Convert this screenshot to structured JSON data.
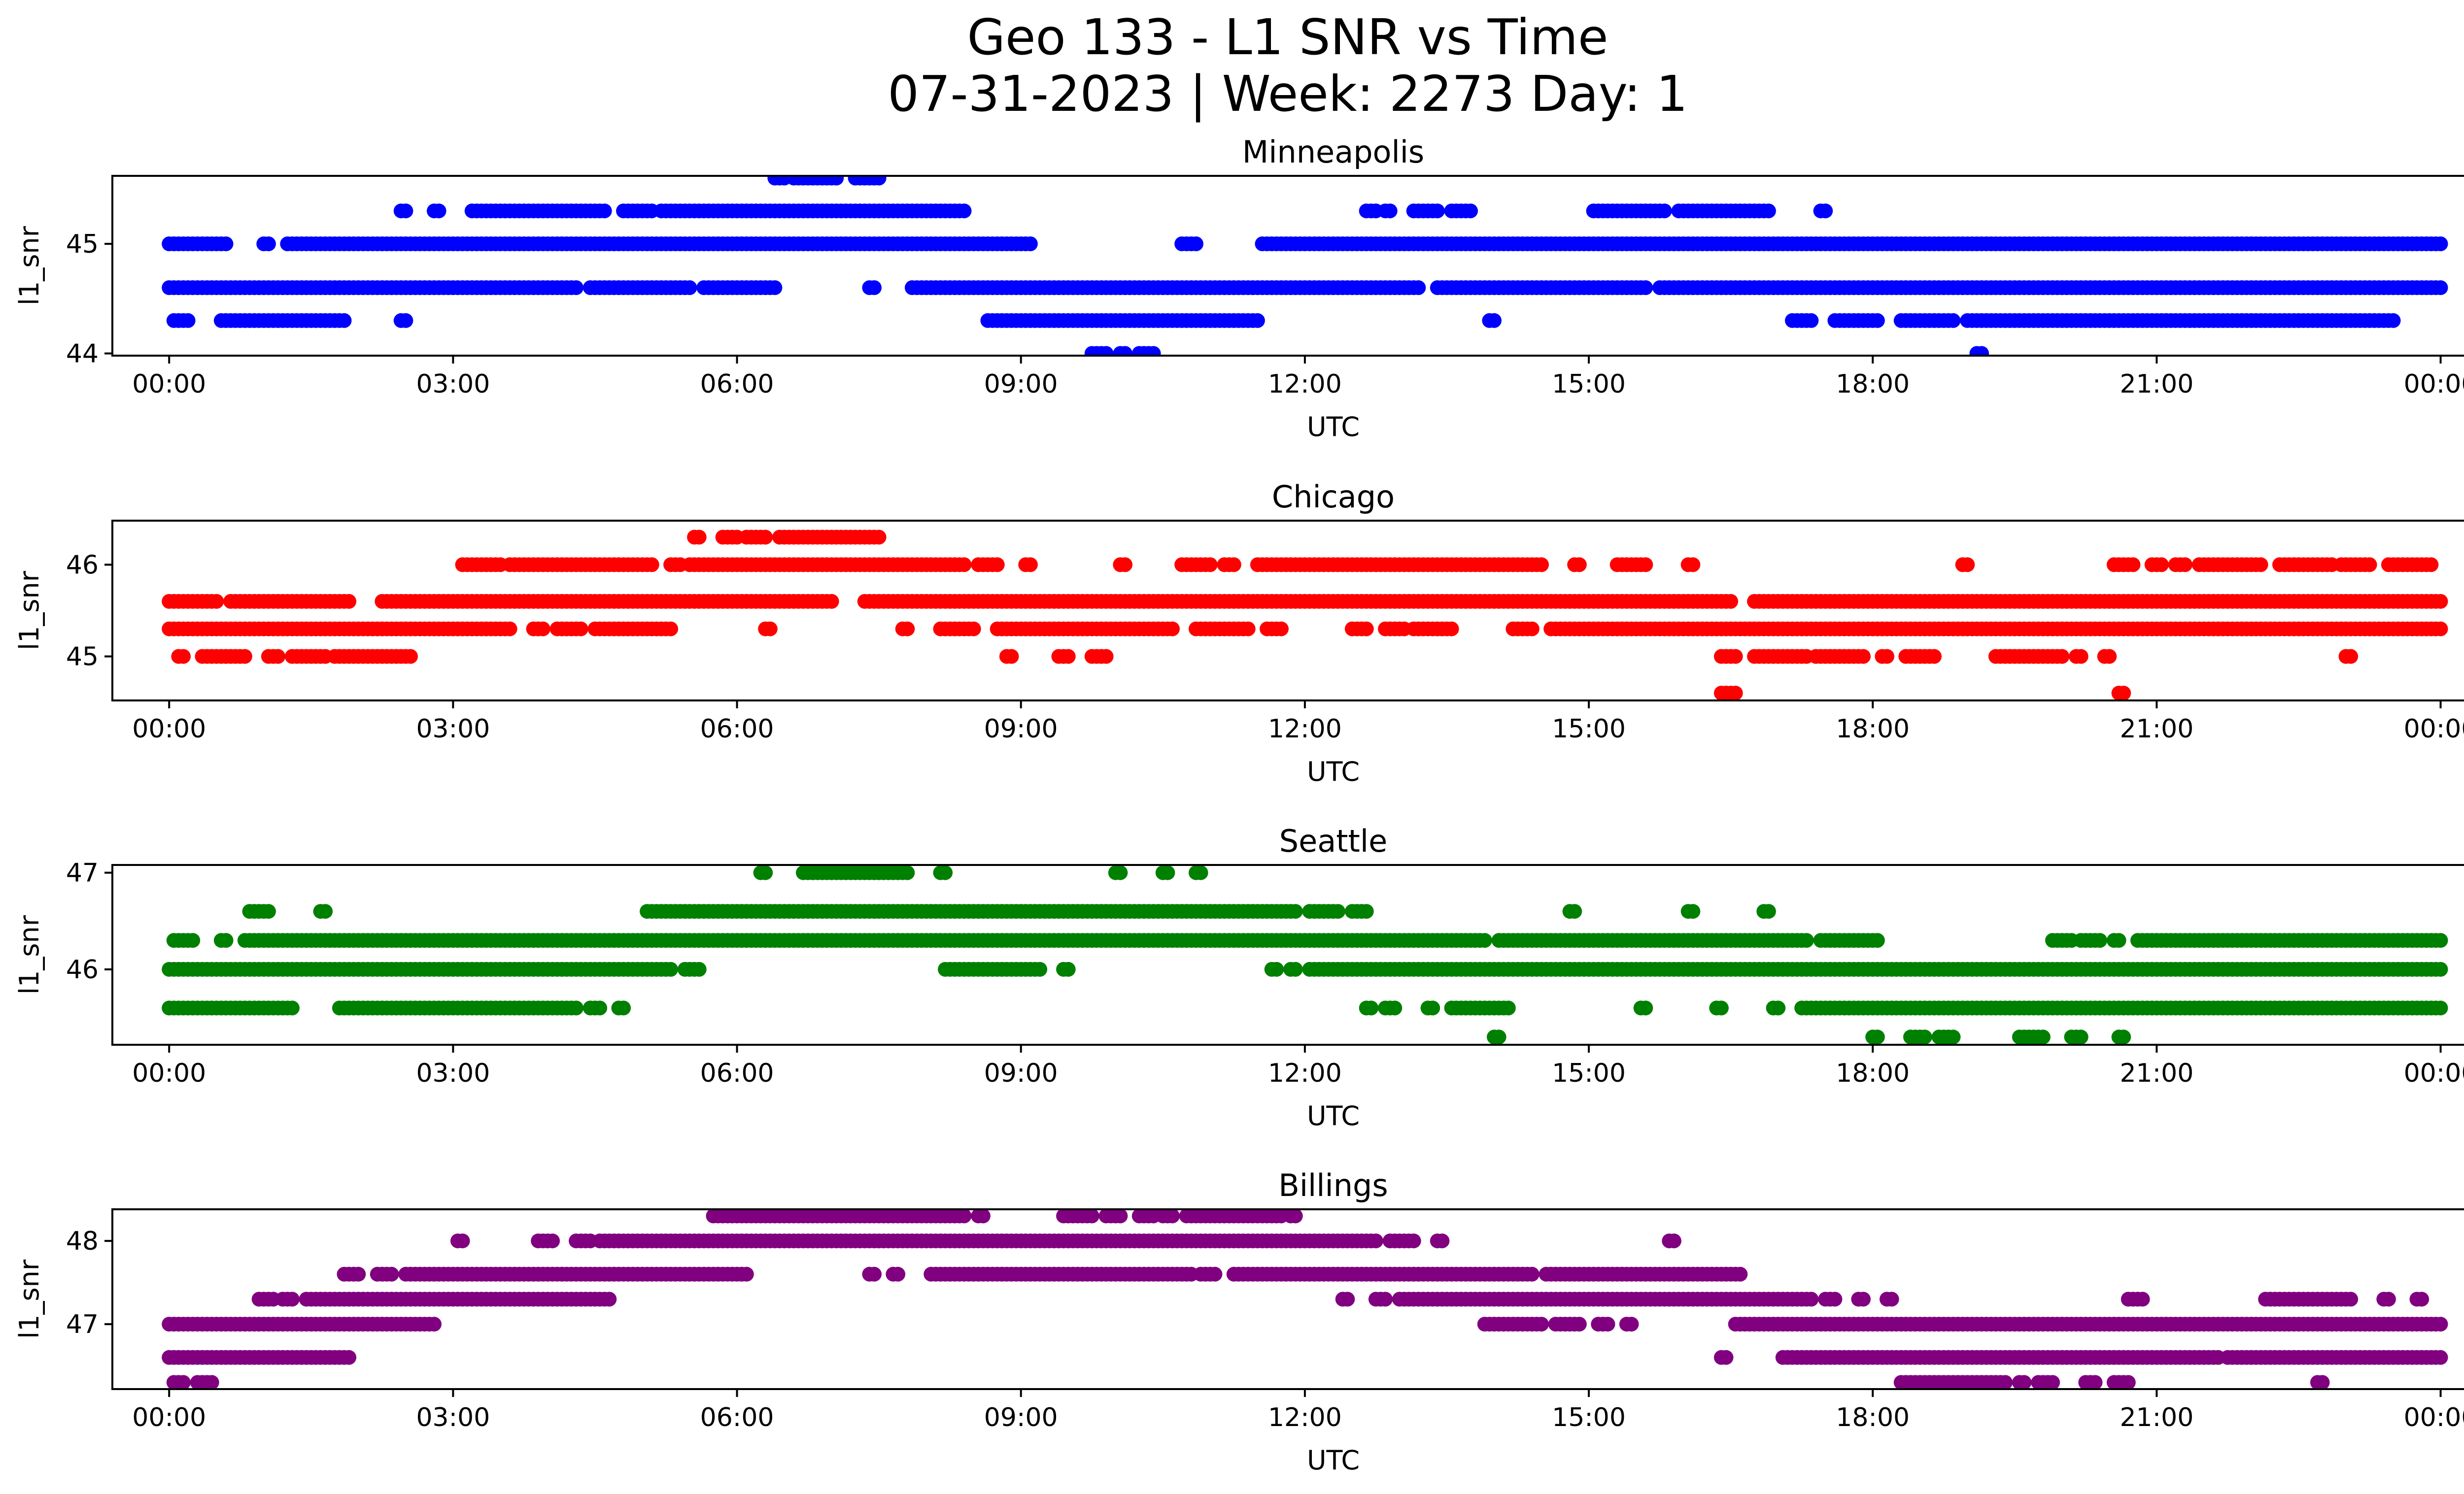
{
  "figure": {
    "title_line1": "Geo 133 - L1 SNR vs Time",
    "title_line2": "07-31-2023 | Week: 2273 Day: 1"
  },
  "chart_data": [
    {
      "type": "scatter",
      "title": "Minneapolis",
      "xlabel": "UTC",
      "ylabel": "l1_snr",
      "color": "#0000ff",
      "ylim": [
        43.98,
        45.62
      ],
      "yticks": [
        44,
        45
      ],
      "xlim_hours": [
        -0.6,
        25.2
      ],
      "xticks": [
        "00:00",
        "03:00",
        "06:00",
        "09:00",
        "12:00",
        "15:00",
        "18:00",
        "21:00",
        "00:00"
      ],
      "levels": [
        {
          "y": 45.6,
          "ranges": [
            [
              6.4,
              6.5
            ],
            [
              6.6,
              7.05
            ],
            [
              7.25,
              7.5
            ]
          ]
        },
        {
          "y": 45.3,
          "ranges": [
            [
              2.45,
              2.5
            ],
            [
              2.8,
              2.85
            ],
            [
              3.2,
              4.6
            ],
            [
              4.8,
              5.1
            ],
            [
              5.2,
              8.4
            ],
            [
              12.65,
              12.75
            ],
            [
              12.85,
              12.9
            ],
            [
              13.15,
              13.4
            ],
            [
              13.55,
              13.75
            ],
            [
              15.05,
              15.8
            ],
            [
              15.95,
              16.9
            ],
            [
              17.45,
              17.5
            ]
          ]
        },
        {
          "y": 45.0,
          "ranges": [
            [
              0.0,
              0.6
            ],
            [
              1.0,
              1.05
            ],
            [
              1.25,
              9.1
            ],
            [
              10.7,
              10.85
            ],
            [
              11.55,
              24.0
            ]
          ]
        },
        {
          "y": 44.6,
          "ranges": [
            [
              0.0,
              4.3
            ],
            [
              4.45,
              5.5
            ],
            [
              5.65,
              6.4
            ],
            [
              7.4,
              7.45
            ],
            [
              7.85,
              13.2
            ],
            [
              13.4,
              15.6
            ],
            [
              15.75,
              24.0
            ]
          ]
        },
        {
          "y": 44.3,
          "ranges": [
            [
              0.05,
              0.2
            ],
            [
              0.55,
              1.85
            ],
            [
              2.45,
              2.5
            ],
            [
              8.65,
              11.5
            ],
            [
              13.95,
              14.0
            ],
            [
              17.15,
              17.35
            ],
            [
              17.6,
              18.05
            ],
            [
              18.3,
              18.85
            ],
            [
              19.0,
              20.5
            ],
            [
              20.55,
              23.5
            ]
          ]
        },
        {
          "y": 44.0,
          "ranges": [
            [
              9.75,
              9.9
            ],
            [
              10.05,
              10.1
            ],
            [
              10.25,
              10.4
            ],
            [
              19.1,
              19.15
            ]
          ]
        }
      ]
    },
    {
      "type": "scatter",
      "title": "Chicago",
      "xlabel": "UTC",
      "ylabel": "l1_snr",
      "color": "#ff0000",
      "ylim": [
        44.52,
        46.48
      ],
      "yticks": [
        45,
        46
      ],
      "xlim_hours": [
        -0.6,
        25.2
      ],
      "xticks": [
        "00:00",
        "03:00",
        "06:00",
        "09:00",
        "12:00",
        "15:00",
        "18:00",
        "21:00",
        "00:00"
      ],
      "levels": [
        {
          "y": 46.3,
          "ranges": [
            [
              5.55,
              5.6
            ],
            [
              5.85,
              6.0
            ],
            [
              6.1,
              6.3
            ],
            [
              6.45,
              7.5
            ]
          ]
        },
        {
          "y": 46.0,
          "ranges": [
            [
              3.1,
              3.5
            ],
            [
              3.6,
              5.1
            ],
            [
              5.3,
              5.4
            ],
            [
              5.5,
              8.4
            ],
            [
              8.55,
              8.75
            ],
            [
              9.05,
              9.1
            ],
            [
              10.05,
              10.1
            ],
            [
              10.7,
              11.0
            ],
            [
              11.15,
              11.25
            ],
            [
              11.5,
              14.5
            ],
            [
              14.85,
              14.9
            ],
            [
              15.3,
              15.6
            ],
            [
              16.05,
              16.1
            ],
            [
              18.95,
              19.0
            ],
            [
              20.55,
              20.75
            ],
            [
              20.95,
              21.05
            ],
            [
              21.2,
              21.3
            ],
            [
              21.45,
              22.1
            ],
            [
              22.3,
              22.85
            ],
            [
              22.95,
              23.25
            ],
            [
              23.45,
              23.9
            ]
          ]
        },
        {
          "y": 45.6,
          "ranges": [
            [
              0.0,
              0.5
            ],
            [
              0.65,
              1.9
            ],
            [
              2.25,
              7.0
            ],
            [
              7.35,
              16.5
            ],
            [
              16.75,
              24.0
            ]
          ]
        },
        {
          "y": 45.3,
          "ranges": [
            [
              0.0,
              3.6
            ],
            [
              3.85,
              3.95
            ],
            [
              4.1,
              4.35
            ],
            [
              4.5,
              5.3
            ],
            [
              6.3,
              6.35
            ],
            [
              7.75,
              7.8
            ],
            [
              8.15,
              8.5
            ],
            [
              8.75,
              10.6
            ],
            [
              10.85,
              11.4
            ],
            [
              11.6,
              11.75
            ],
            [
              12.5,
              12.65
            ],
            [
              12.85,
              13.05
            ],
            [
              13.15,
              13.55
            ],
            [
              14.2,
              14.4
            ],
            [
              14.6,
              24.0
            ]
          ]
        },
        {
          "y": 45.0,
          "ranges": [
            [
              0.1,
              0.15
            ],
            [
              0.35,
              0.8
            ],
            [
              1.05,
              1.15
            ],
            [
              1.3,
              1.65
            ],
            [
              1.75,
              2.55
            ],
            [
              8.85,
              8.9
            ],
            [
              9.4,
              9.5
            ],
            [
              9.75,
              9.9
            ],
            [
              16.4,
              16.55
            ],
            [
              16.75,
              17.3
            ],
            [
              17.4,
              17.9
            ],
            [
              18.1,
              18.15
            ],
            [
              18.35,
              18.65
            ],
            [
              19.3,
              20.0
            ],
            [
              20.15,
              20.2
            ],
            [
              20.45,
              20.5
            ],
            [
              23.0,
              23.05
            ]
          ]
        },
        {
          "y": 44.6,
          "ranges": [
            [
              16.4,
              16.55
            ],
            [
              20.6,
              20.65
            ]
          ]
        }
      ]
    },
    {
      "type": "scatter",
      "title": "Seattle",
      "xlabel": "UTC",
      "ylabel": "l1_snr",
      "color": "#008000",
      "ylim": [
        45.22,
        47.08
      ],
      "yticks": [
        46,
        47
      ],
      "xlim_hours": [
        -0.6,
        25.2
      ],
      "xticks": [
        "00:00",
        "03:00",
        "06:00",
        "09:00",
        "12:00",
        "15:00",
        "18:00",
        "21:00",
        "00:00"
      ],
      "levels": [
        {
          "y": 47.0,
          "ranges": [
            [
              6.25,
              6.3
            ],
            [
              6.7,
              7.8
            ],
            [
              8.15,
              8.2
            ],
            [
              10.0,
              10.05
            ],
            [
              10.5,
              10.55
            ],
            [
              10.85,
              10.9
            ]
          ]
        },
        {
          "y": 46.6,
          "ranges": [
            [
              0.85,
              1.05
            ],
            [
              1.6,
              1.65
            ],
            [
              5.05,
              11.9
            ],
            [
              12.05,
              12.35
            ],
            [
              12.5,
              12.65
            ],
            [
              14.8,
              14.85
            ],
            [
              16.05,
              16.1
            ],
            [
              16.85,
              16.9
            ]
          ]
        },
        {
          "y": 46.3,
          "ranges": [
            [
              0.05,
              0.25
            ],
            [
              0.55,
              0.6
            ],
            [
              0.8,
              13.9
            ],
            [
              14.05,
              17.3
            ],
            [
              17.45,
              17.9
            ],
            [
              17.95,
              18.05
            ],
            [
              19.9,
              20.1
            ],
            [
              20.2,
              20.4
            ],
            [
              20.55,
              20.6
            ],
            [
              20.8,
              24.0
            ]
          ]
        },
        {
          "y": 46.0,
          "ranges": [
            [
              0.0,
              5.3
            ],
            [
              5.45,
              5.6
            ],
            [
              8.2,
              9.2
            ],
            [
              9.45,
              9.5
            ],
            [
              11.65,
              11.7
            ],
            [
              11.85,
              11.9
            ],
            [
              12.05,
              24.0
            ]
          ]
        },
        {
          "y": 45.6,
          "ranges": [
            [
              0.0,
              1.3
            ],
            [
              1.8,
              4.3
            ],
            [
              4.45,
              4.55
            ],
            [
              4.75,
              4.8
            ],
            [
              12.65,
              12.7
            ],
            [
              12.85,
              12.95
            ],
            [
              13.3,
              13.35
            ],
            [
              13.55,
              14.15
            ],
            [
              15.55,
              15.6
            ],
            [
              16.35,
              16.4
            ],
            [
              16.95,
              17.0
            ],
            [
              17.25,
              24.0
            ]
          ]
        },
        {
          "y": 45.3,
          "ranges": [
            [
              14.0,
              14.05
            ],
            [
              18.0,
              18.05
            ],
            [
              18.4,
              18.55
            ],
            [
              18.7,
              18.85
            ],
            [
              19.55,
              19.8
            ],
            [
              20.1,
              20.2
            ],
            [
              20.6,
              20.65
            ]
          ]
        }
      ]
    },
    {
      "type": "scatter",
      "title": "Billings",
      "xlabel": "UTC",
      "ylabel": "l1_snr",
      "color": "#800080",
      "ylim": [
        46.22,
        48.38
      ],
      "yticks": [
        47,
        48
      ],
      "xlim_hours": [
        -0.6,
        25.2
      ],
      "xticks": [
        "00:00",
        "03:00",
        "06:00",
        "09:00",
        "12:00",
        "15:00",
        "18:00",
        "21:00",
        "00:00"
      ],
      "levels": [
        {
          "y": 48.3,
          "ranges": [
            [
              5.75,
              8.4
            ],
            [
              8.55,
              8.6
            ],
            [
              9.45,
              9.75
            ],
            [
              9.9,
              10.05
            ],
            [
              10.25,
              10.4
            ],
            [
              10.5,
              10.6
            ],
            [
              10.75,
              11.75
            ],
            [
              11.85,
              11.9
            ]
          ]
        },
        {
          "y": 48.0,
          "ranges": [
            [
              3.05,
              3.1
            ],
            [
              3.9,
              4.05
            ],
            [
              4.3,
              4.45
            ],
            [
              4.55,
              12.75
            ],
            [
              12.9,
              13.15
            ],
            [
              13.4,
              13.45
            ],
            [
              15.85,
              15.9
            ]
          ]
        },
        {
          "y": 47.6,
          "ranges": [
            [
              1.85,
              2.0
            ],
            [
              2.2,
              2.35
            ],
            [
              2.5,
              6.1
            ],
            [
              7.4,
              7.45
            ],
            [
              7.65,
              7.7
            ],
            [
              8.05,
              10.8
            ],
            [
              10.9,
              11.05
            ],
            [
              11.25,
              14.4
            ],
            [
              14.55,
              16.6
            ]
          ]
        },
        {
          "y": 47.3,
          "ranges": [
            [
              0.95,
              1.1
            ],
            [
              1.2,
              1.3
            ],
            [
              1.45,
              4.65
            ],
            [
              12.4,
              12.45
            ],
            [
              12.75,
              12.85
            ],
            [
              13.0,
              17.35
            ],
            [
              17.5,
              17.6
            ],
            [
              17.85,
              17.9
            ],
            [
              18.15,
              18.2
            ],
            [
              20.7,
              20.85
            ],
            [
              22.15,
              22.25
            ],
            [
              22.3,
              23.05
            ],
            [
              23.4,
              23.45
            ],
            [
              23.75,
              23.8
            ]
          ]
        },
        {
          "y": 47.0,
          "ranges": [
            [
              0.0,
              2.8
            ],
            [
              13.9,
              14.5
            ],
            [
              14.65,
              14.9
            ],
            [
              15.1,
              15.2
            ],
            [
              15.4,
              15.45
            ],
            [
              16.55,
              24.0
            ]
          ]
        },
        {
          "y": 46.6,
          "ranges": [
            [
              0.0,
              1.9
            ],
            [
              16.4,
              16.45
            ],
            [
              17.05,
              21.65
            ],
            [
              21.75,
              24.0
            ]
          ]
        },
        {
          "y": 46.3,
          "ranges": [
            [
              0.05,
              0.15
            ],
            [
              0.3,
              0.45
            ],
            [
              18.3,
              19.4
            ],
            [
              19.55,
              19.6
            ],
            [
              19.75,
              19.9
            ],
            [
              20.25,
              20.35
            ],
            [
              20.55,
              20.7
            ],
            [
              22.7,
              22.75
            ]
          ]
        }
      ]
    }
  ]
}
